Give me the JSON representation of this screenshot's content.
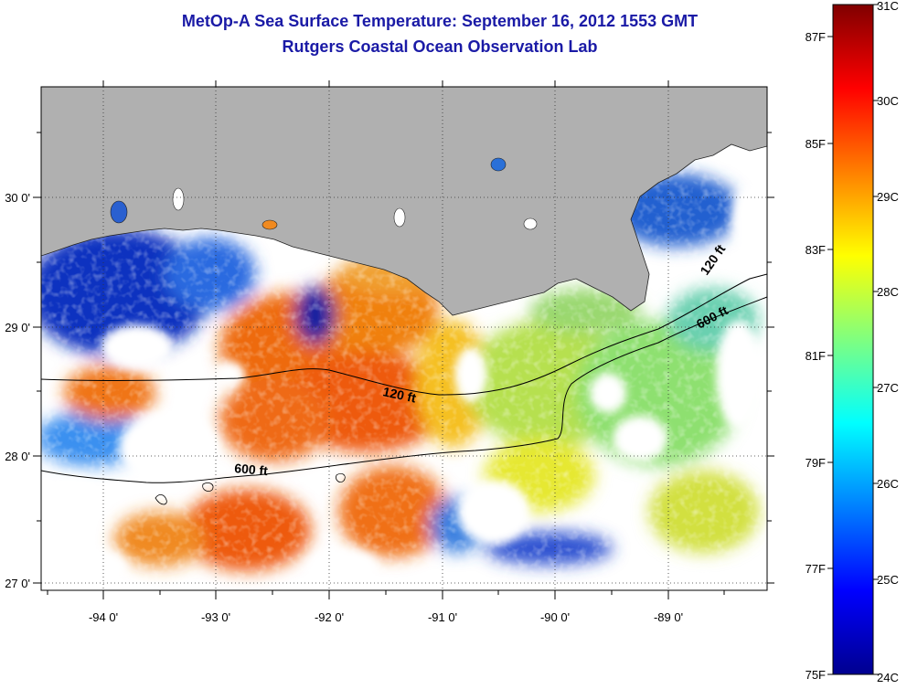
{
  "header": {
    "title": "MetOp-A Sea Surface Temperature:  September 16, 2012 1553 GMT",
    "subtitle": "Rutgers Coastal Ocean Observation Lab"
  },
  "map": {
    "longitude_ticks": [
      "-94 0'",
      "-93 0'",
      "-92 0'",
      "-91 0'",
      "-90 0'",
      "-89 0'"
    ],
    "latitude_ticks": [
      "30 0'",
      "29 0'",
      "28 0'",
      "27 0'"
    ],
    "contour_labels": [
      "120 ft",
      "600 ft",
      "600 ft",
      "120 ft"
    ],
    "land_color": "#b0b0b0",
    "no_data_color": "#ffffff"
  },
  "colorbar": {
    "fahrenheit_labels": [
      "87F",
      "85F",
      "83F",
      "81F",
      "79F",
      "77F",
      "75F"
    ],
    "celsius_labels": [
      "31C",
      "30C",
      "29C",
      "28C",
      "27C",
      "26C",
      "25C",
      "24C"
    ]
  },
  "colors": {
    "title": "#1a1aa6",
    "warm": "#ee5a10",
    "cool": "#0a1f9a"
  }
}
